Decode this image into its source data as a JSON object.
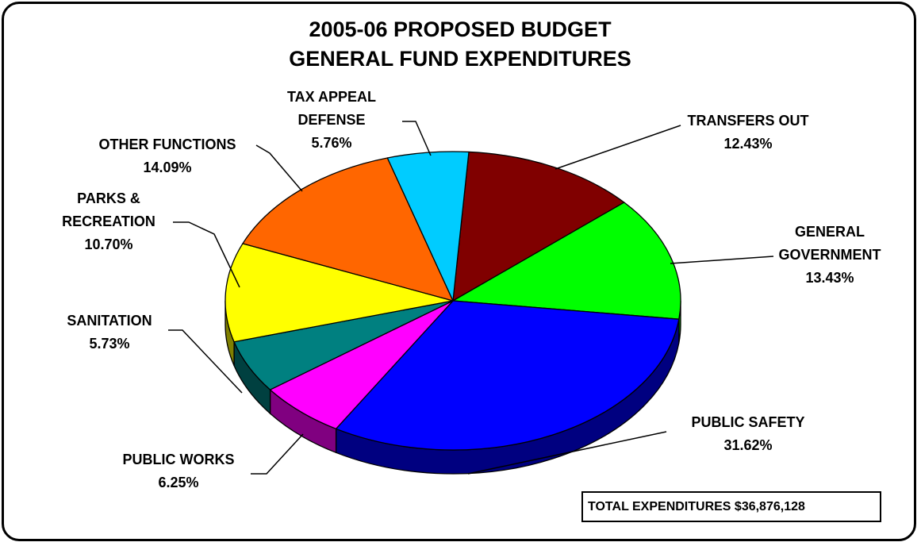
{
  "chart_data": {
    "type": "pie",
    "title": [
      "2005-06 PROPOSED BUDGET",
      "GENERAL FUND EXPENDITURES"
    ],
    "slices": [
      {
        "key": "transfers",
        "label_lines": [
          "TRANSFERS OUT"
        ],
        "percent_label": "12.43%",
        "value": 12.43,
        "color": "#800000",
        "side_color": "#4a0000"
      },
      {
        "key": "general",
        "label_lines": [
          "GENERAL",
          "GOVERNMENT"
        ],
        "percent_label": "13.43%",
        "value": 13.43,
        "color": "#00ff00",
        "side_color": "#009900"
      },
      {
        "key": "safety",
        "label_lines": [
          "PUBLIC SAFETY"
        ],
        "percent_label": "31.62%",
        "value": 31.62,
        "color": "#0000ff",
        "side_color": "#000080"
      },
      {
        "key": "works",
        "label_lines": [
          "PUBLIC WORKS"
        ],
        "percent_label": "6.25%",
        "value": 6.25,
        "color": "#ff00ff",
        "side_color": "#800080"
      },
      {
        "key": "sanitation",
        "label_lines": [
          "SANITATION"
        ],
        "percent_label": "5.73%",
        "value": 5.73,
        "color": "#008080",
        "side_color": "#004040"
      },
      {
        "key": "parks",
        "label_lines": [
          "PARKS &",
          "RECREATION"
        ],
        "percent_label": "10.70%",
        "value": 10.7,
        "color": "#ffff00",
        "side_color": "#808000"
      },
      {
        "key": "other",
        "label_lines": [
          "OTHER FUNCTIONS"
        ],
        "percent_label": "14.09%",
        "value": 14.09,
        "color": "#ff6600",
        "side_color": "#993d00"
      },
      {
        "key": "tax",
        "label_lines": [
          "TAX APPEAL",
          "DEFENSE"
        ],
        "percent_label": "5.76%",
        "value": 5.76,
        "color": "#00ccff",
        "side_color": "#007a99"
      }
    ],
    "total_label": "TOTAL EXPENDITURES $36,876,128"
  }
}
